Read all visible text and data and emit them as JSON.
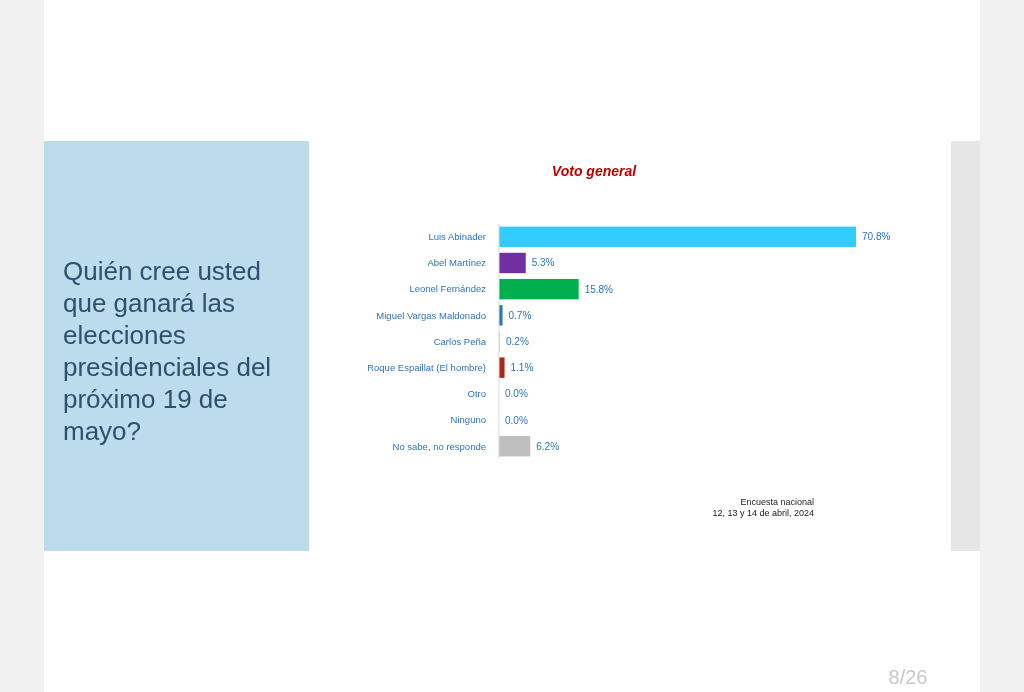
{
  "chart_data": {
    "type": "bar",
    "orientation": "horizontal",
    "title": "Voto general",
    "subtitle": "Quién cree usted que ganará las elecciones presidenciales del próximo 19 de mayo?",
    "categories": [
      "Luis Abinader",
      "Abel Martínez",
      "Leonel Fernández",
      "Miguel Vargas Maldonado",
      "Carlos Peña",
      "Roque Espaillat (El hombre)",
      "Otro",
      "Ninguno",
      "No sabe, no responde"
    ],
    "values": [
      70.8,
      5.3,
      15.8,
      0.7,
      0.2,
      1.1,
      0.0,
      0.0,
      6.2
    ],
    "colors": [
      "#33ccff",
      "#7030a0",
      "#00b050",
      "#2e75b6",
      "#f4b6b0",
      "#a52a1a",
      "#bfbfbf",
      "#bfbfbf",
      "#bfbfbf"
    ],
    "value_labels": [
      "70.8%",
      "5.3%",
      "15.8%",
      "0.7%",
      "0.2%",
      "1.1%",
      "0.0%",
      "0.0%",
      "6.2%"
    ],
    "annotations": [
      "Encuesta nacional\n12, 13 y 14 de abril, 2024",
      "8/26"
    ]
  }
}
